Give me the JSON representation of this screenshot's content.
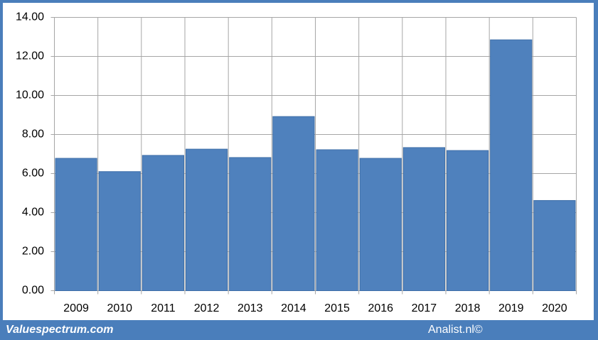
{
  "chart_data": {
    "type": "bar",
    "categories": [
      "2009",
      "2010",
      "2011",
      "2012",
      "2013",
      "2014",
      "2015",
      "2016",
      "2017",
      "2018",
      "2019",
      "2020"
    ],
    "values": [
      6.78,
      6.1,
      6.93,
      7.25,
      6.82,
      8.92,
      7.22,
      6.78,
      7.33,
      7.18,
      12.85,
      4.62
    ],
    "color": "#4f81bd",
    "ylim": [
      0,
      14
    ],
    "yticks": [
      {
        "value": 0,
        "label": "0.00"
      },
      {
        "value": 2,
        "label": "2.00"
      },
      {
        "value": 4,
        "label": "4.00"
      },
      {
        "value": 6,
        "label": "6.00"
      },
      {
        "value": 8,
        "label": "8.00"
      },
      {
        "value": 10,
        "label": "10.00"
      },
      {
        "value": 12,
        "label": "12.00"
      },
      {
        "value": 14,
        "label": "14.00"
      }
    ],
    "grid": true
  },
  "footer": {
    "left": "Valuespectrum.com",
    "right": "Analist.nl©"
  }
}
